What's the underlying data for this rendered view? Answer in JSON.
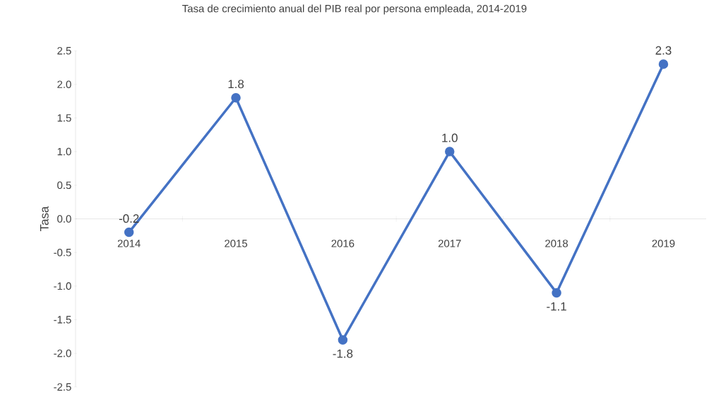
{
  "chart_data": {
    "type": "line",
    "title": "Tasa de crecimiento anual del PIB real por persona empleada, 2014-2019",
    "ylabel": "Tasa",
    "categories": [
      "2014",
      "2015",
      "2016",
      "2017",
      "2018",
      "2019"
    ],
    "values": [
      -0.2,
      1.8,
      -1.8,
      1.0,
      -1.1,
      2.3
    ],
    "value_labels": [
      "-0.2",
      "1.8",
      "-1.8",
      "1.0",
      "-1.1",
      "2.3"
    ],
    "color": "#4472c4",
    "marker": "circle",
    "grid": false,
    "ylim": [
      -2.5,
      2.5
    ],
    "yticks": [
      {
        "value": -2.5,
        "label": "-2.5"
      },
      {
        "value": -2.0,
        "label": "-2.0"
      },
      {
        "value": -1.5,
        "label": "-1.5"
      },
      {
        "value": -1.0,
        "label": "-1.0"
      },
      {
        "value": -0.5,
        "label": "-0.5"
      },
      {
        "value": 0,
        "label": "0.0"
      },
      {
        "value": 0.5,
        "label": "0.5"
      },
      {
        "value": 1.0,
        "label": "1.0"
      },
      {
        "value": 1.5,
        "label": "1.5"
      },
      {
        "value": 2.0,
        "label": "2.0"
      },
      {
        "value": 2.5,
        "label": "2.5"
      }
    ]
  }
}
